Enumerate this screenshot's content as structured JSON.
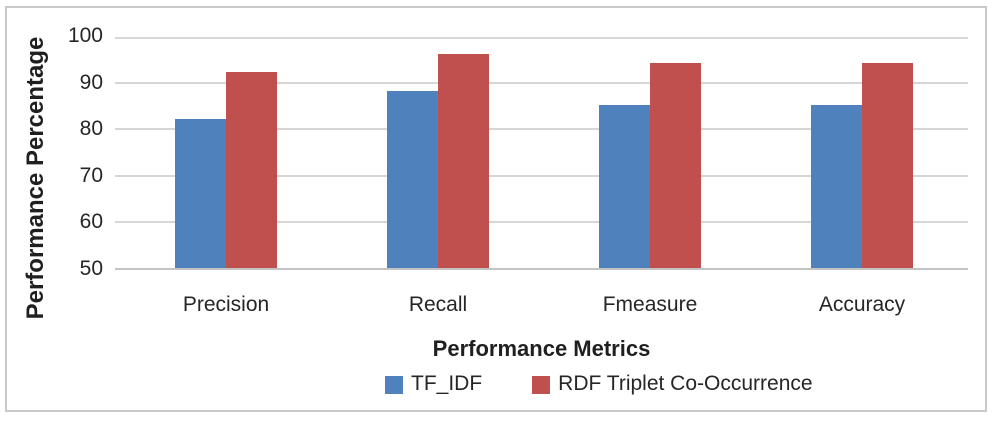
{
  "chart_data": {
    "type": "bar",
    "title": "",
    "categories": [
      "Precision",
      "Recall",
      "Fmeasure",
      "Accuracy"
    ],
    "series": [
      {
        "name": "TF_IDF",
        "color": "#4F81BD",
        "values": [
          82,
          88,
          85,
          85
        ]
      },
      {
        "name": "RDF Triplet Co-Occurrence",
        "color": "#C0504D",
        "values": [
          92,
          96,
          94,
          94
        ]
      }
    ],
    "xlabel": "Performance Metrics",
    "ylabel": "Performance Percentage",
    "ylim": [
      50,
      100
    ],
    "yticks": [
      50,
      60,
      70,
      80,
      90,
      100
    ],
    "grid": true,
    "legend_position": "bottom"
  }
}
